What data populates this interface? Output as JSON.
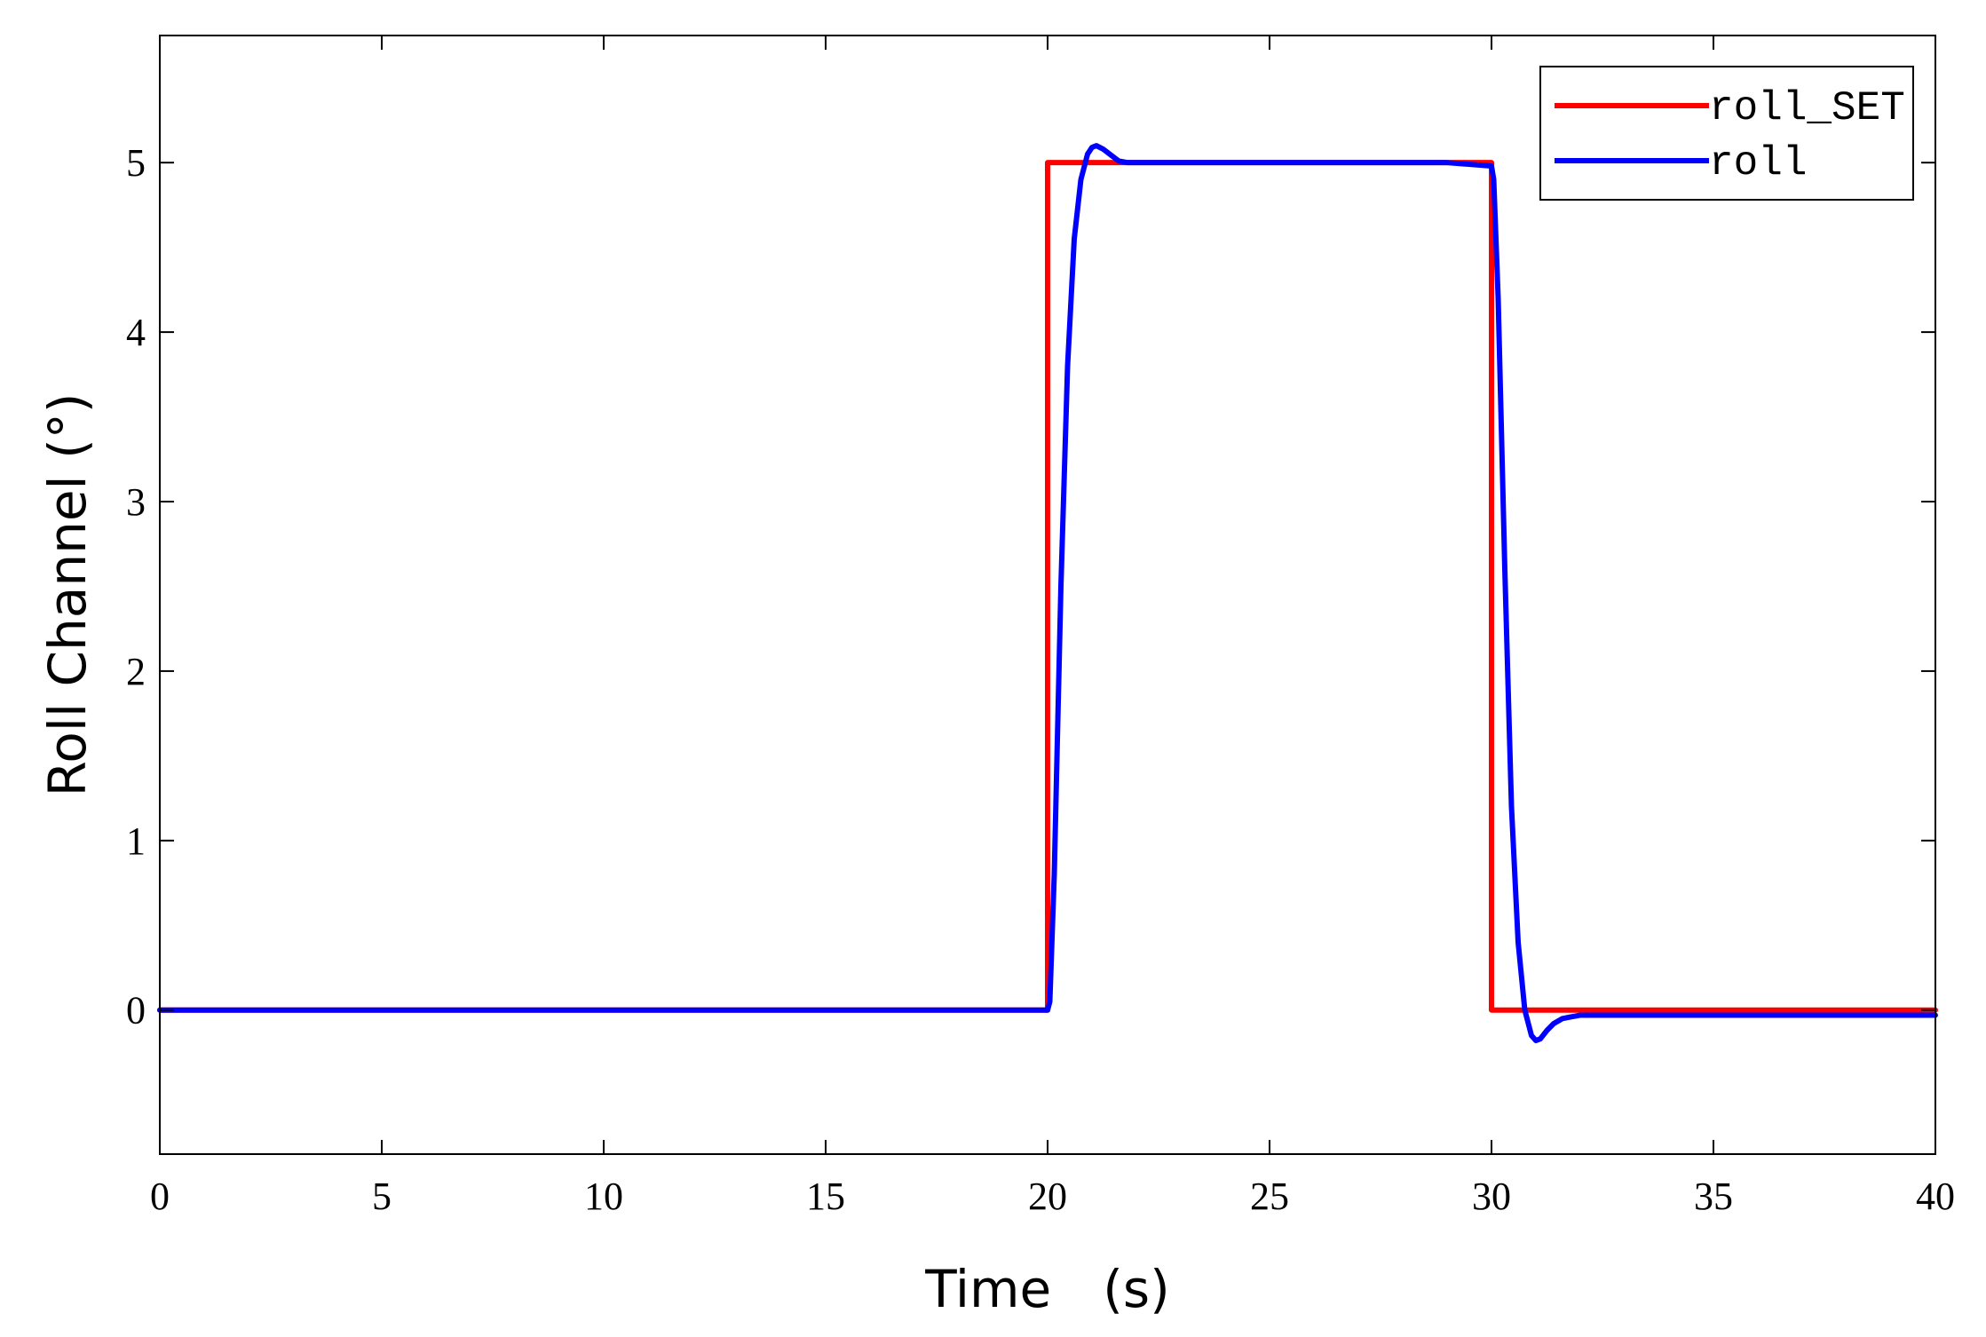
{
  "chart_data": {
    "type": "line",
    "title": "",
    "xlabel": "Time　(s)",
    "ylabel": "Roll Channel (°)",
    "xlim": [
      0,
      40
    ],
    "ylim": [
      -0.85,
      5.75
    ],
    "xticks": [
      0,
      5,
      10,
      15,
      20,
      25,
      30,
      35,
      40
    ],
    "yticks": [
      0,
      1,
      2,
      3,
      4,
      5
    ],
    "grid": false,
    "legend": "top-right",
    "series": [
      {
        "name": "roll_SET",
        "color": "#ff0000",
        "x": [
          0,
          20,
          20,
          30,
          30,
          40
        ],
        "y": [
          0,
          0,
          5,
          5,
          0,
          0
        ]
      },
      {
        "name": "roll",
        "color": "#0000ff",
        "x": [
          0,
          20,
          20.05,
          20.15,
          20.3,
          20.45,
          20.6,
          20.75,
          20.9,
          21.0,
          21.1,
          21.25,
          21.4,
          21.6,
          21.8,
          22.0,
          22.5,
          25,
          29,
          30,
          30.05,
          30.15,
          30.3,
          30.45,
          30.6,
          30.75,
          30.9,
          31.0,
          31.1,
          31.25,
          31.4,
          31.6,
          31.8,
          32.0,
          32.5,
          35,
          40
        ],
        "y": [
          0,
          0,
          0.05,
          0.8,
          2.5,
          3.8,
          4.55,
          4.9,
          5.05,
          5.09,
          5.1,
          5.08,
          5.05,
          5.01,
          5.0,
          5.0,
          5.0,
          5.0,
          5.0,
          4.98,
          4.9,
          4.2,
          2.6,
          1.2,
          0.4,
          0.0,
          -0.15,
          -0.18,
          -0.17,
          -0.12,
          -0.08,
          -0.05,
          -0.04,
          -0.03,
          -0.03,
          -0.03,
          -0.03
        ]
      }
    ]
  }
}
